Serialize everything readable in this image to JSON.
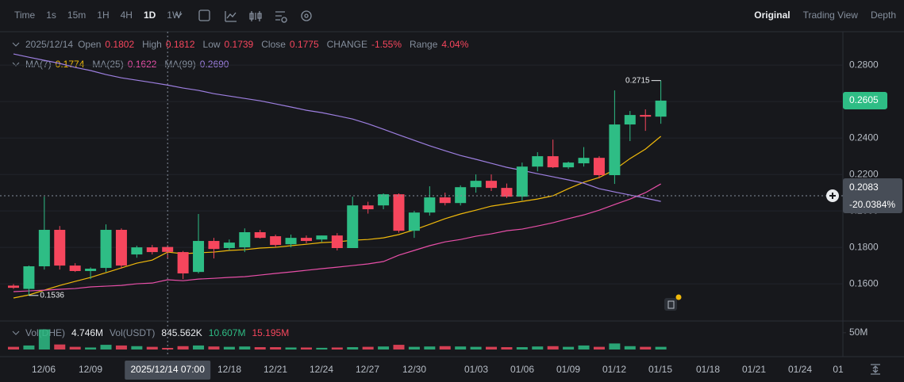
{
  "toolbar": {
    "intervals": [
      "Time",
      "1s",
      "15m",
      "1H",
      "4H",
      "1D",
      "1W"
    ],
    "active_interval": 5,
    "views": [
      "Original",
      "Trading View",
      "Depth"
    ]
  },
  "header": {
    "date": "2025/12/14",
    "fields": [
      {
        "label": "Open",
        "value": "0.1802"
      },
      {
        "label": "High",
        "value": "0.1812"
      },
      {
        "label": "Low",
        "value": "0.1739"
      },
      {
        "label": "Close",
        "value": "0.1775"
      },
      {
        "label": "CHANGE",
        "value": "-1.55%"
      },
      {
        "label": "Range",
        "value": "4.04%"
      }
    ],
    "ma_values": [
      "0.1774",
      "0.1622",
      "0.2690"
    ],
    "volume": [
      {
        "label": "Vol(DHE)",
        "value": "4.746M"
      },
      {
        "label": "Vol(USDT)",
        "value": "845.562K"
      },
      {
        "label": null,
        "value": "10.607M"
      },
      {
        "label": null,
        "value": "15.195M"
      }
    ]
  },
  "chart_data": {
    "type": "candlestick",
    "open": [
      0.159,
      0.1572,
      0.1696,
      0.1896,
      0.17,
      0.167,
      0.1687,
      0.1896,
      0.1761,
      0.18,
      0.1802,
      0.1774,
      0.1665,
      0.1835,
      0.1796,
      0.18,
      0.1883,
      0.1861,
      0.1817,
      0.1852,
      0.1843,
      0.1865,
      0.1796,
      0.203,
      0.203,
      0.2091,
      0.1891,
      0.1991,
      0.2074,
      0.2043,
      0.213,
      0.2165,
      0.2126,
      0.2078,
      0.2243,
      0.23,
      0.2239,
      0.2261,
      0.2291,
      0.2196,
      0.2474,
      0.2526,
      0.2517
    ],
    "high": [
      0.1598,
      0.17,
      0.2078,
      0.1917,
      0.1713,
      0.169,
      0.1926,
      0.1904,
      0.1809,
      0.1813,
      0.1812,
      0.178,
      0.1983,
      0.1852,
      0.1843,
      0.1904,
      0.1896,
      0.187,
      0.187,
      0.1865,
      0.1865,
      0.1878,
      0.2078,
      0.205,
      0.2096,
      0.2096,
      0.2,
      0.2135,
      0.21,
      0.214,
      0.22,
      0.22,
      0.215,
      0.2265,
      0.2322,
      0.2391,
      0.227,
      0.235,
      0.23,
      0.2661,
      0.2548,
      0.2557,
      0.2715
    ],
    "low": [
      0.1572,
      0.1536,
      0.1678,
      0.1678,
      0.1665,
      0.1626,
      0.1665,
      0.1683,
      0.1743,
      0.1761,
      0.1739,
      0.1626,
      0.1657,
      0.1739,
      0.1783,
      0.1774,
      0.1848,
      0.18,
      0.18,
      0.1822,
      0.183,
      0.1783,
      0.1796,
      0.1985,
      0.2009,
      0.188,
      0.1852,
      0.1974,
      0.203,
      0.203,
      0.21,
      0.2109,
      0.207,
      0.2057,
      0.2217,
      0.2235,
      0.223,
      0.2243,
      0.2178,
      0.2148,
      0.2383,
      0.2439,
      0.2478
    ],
    "close": [
      0.1578,
      0.1696,
      0.1896,
      0.17,
      0.167,
      0.1683,
      0.1896,
      0.17,
      0.18,
      0.1774,
      0.1775,
      0.1657,
      0.1835,
      0.1791,
      0.1826,
      0.1883,
      0.1852,
      0.1813,
      0.1852,
      0.1835,
      0.1865,
      0.1796,
      0.203,
      0.2009,
      0.2091,
      0.1891,
      0.1991,
      0.2074,
      0.2043,
      0.213,
      0.2165,
      0.2126,
      0.2078,
      0.2243,
      0.23,
      0.2239,
      0.2265,
      0.2291,
      0.2196,
      0.2474,
      0.2526,
      0.2517,
      0.2605
    ],
    "up_color": "#2ebd85",
    "down_color": "#f6465d",
    "ylim": [
      0.1396,
      0.2983
    ],
    "yticks": [
      {
        "value": 0.28,
        "label": "0.2800"
      },
      {
        "value": 0.26,
        "label": "0.2600"
      },
      {
        "value": 0.24,
        "label": "0.2400"
      },
      {
        "value": 0.22,
        "label": "0.2200"
      },
      {
        "value": 0.2,
        "label": "0.2000"
      },
      {
        "value": 0.18,
        "label": "0.1800"
      },
      {
        "value": 0.16,
        "label": "0.1600"
      }
    ],
    "grid": true,
    "series": [
      {
        "name": "MA(7)",
        "color": "#f0b90b",
        "values": [
          0.1522,
          0.1539,
          0.1565,
          0.1591,
          0.1613,
          0.1635,
          0.1661,
          0.1687,
          0.1713,
          0.173,
          0.1774,
          0.1765,
          0.177,
          0.1774,
          0.1783,
          0.1787,
          0.1796,
          0.18,
          0.1809,
          0.1817,
          0.1826,
          0.183,
          0.1839,
          0.1843,
          0.1852,
          0.187,
          0.1896,
          0.1926,
          0.1957,
          0.1983,
          0.2004,
          0.2026,
          0.2039,
          0.2052,
          0.2065,
          0.2083,
          0.2122,
          0.2157,
          0.2183,
          0.2226,
          0.2287,
          0.2339,
          0.2409
        ]
      },
      {
        "name": "MA(25)",
        "color": "#e84fa8",
        "values": [
          0.1557,
          0.1561,
          0.1565,
          0.157,
          0.1574,
          0.1583,
          0.1587,
          0.1591,
          0.16,
          0.1604,
          0.1622,
          0.1617,
          0.1626,
          0.163,
          0.1635,
          0.1639,
          0.1648,
          0.1657,
          0.1665,
          0.1674,
          0.1683,
          0.1691,
          0.17,
          0.1709,
          0.1722,
          0.1757,
          0.1783,
          0.1809,
          0.183,
          0.1843,
          0.1861,
          0.1874,
          0.1891,
          0.19,
          0.1917,
          0.1935,
          0.1957,
          0.1978,
          0.2004,
          0.2035,
          0.2065,
          0.21,
          0.2148
        ]
      },
      {
        "name": "MA(99)",
        "color": "#9d7fe0",
        "values": [
          0.2861,
          0.2843,
          0.2826,
          0.2809,
          0.2787,
          0.277,
          0.2748,
          0.273,
          0.2717,
          0.2704,
          0.269,
          0.2674,
          0.2661,
          0.2643,
          0.263,
          0.2617,
          0.2604,
          0.2587,
          0.257,
          0.2552,
          0.2539,
          0.2522,
          0.2504,
          0.2478,
          0.2448,
          0.2417,
          0.2387,
          0.2357,
          0.233,
          0.2304,
          0.2283,
          0.2261,
          0.2239,
          0.2222,
          0.2204,
          0.2187,
          0.217,
          0.2152,
          0.2122,
          0.2104,
          0.2087,
          0.207,
          0.2052
        ]
      }
    ],
    "volume": {
      "values": [
        8,
        12,
        60,
        15,
        8,
        6,
        14,
        12,
        10,
        8,
        4.746,
        10,
        12,
        9,
        8,
        9,
        7,
        7,
        6,
        6,
        5,
        6,
        7,
        8,
        9,
        14,
        8,
        9,
        10,
        9,
        8,
        8,
        7,
        7,
        9,
        10,
        8,
        12,
        8,
        18,
        10,
        8,
        8
      ],
      "ylim": [
        0,
        78
      ],
      "yticks": [
        {
          "value": 50,
          "label": "50M"
        }
      ]
    },
    "xticks": [
      "12/06",
      "12/09",
      "12/18",
      "12/21",
      "12/24",
      "12/27",
      "12/30",
      "01/03",
      "01/06",
      "01/09",
      "01/12",
      "01/15",
      "01/18",
      "01/21",
      "01/24",
      "01"
    ],
    "crosshair": {
      "price": 0.2083,
      "change": "-20.0384%",
      "time": "2025/12/14 07:00"
    }
  }
}
